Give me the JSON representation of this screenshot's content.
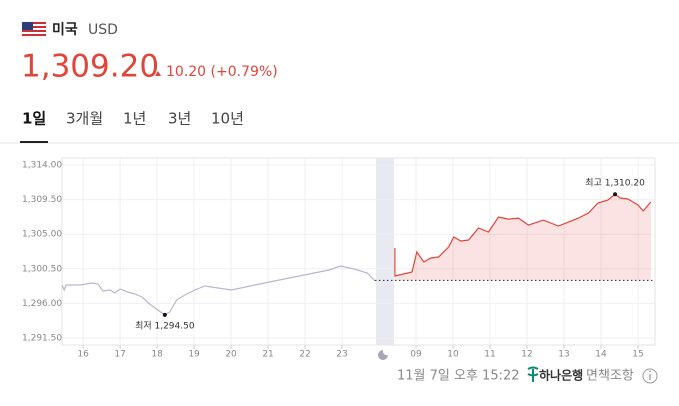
{
  "header": {
    "country": "미국",
    "currency": "USD",
    "price": "1,309.20",
    "change": "10.20 (+0.79%)"
  },
  "tabs": [
    "1일",
    "3개월",
    "1년",
    "3년",
    "10년"
  ],
  "footer": {
    "time": "11월 7일 오후 15:22",
    "bank": "하나은행",
    "separator": "·",
    "disclaimer": "면책조항"
  },
  "chart_data": {
    "type": "line",
    "xlim": [
      -0.57,
      15.46
    ],
    "ylim": [
      1291.5,
      1314
    ],
    "yticks": [
      {
        "value": 1314,
        "label": "1,314.00"
      },
      {
        "value": 1309.5,
        "label": "1,309.50"
      },
      {
        "value": 1305,
        "label": "1,305.00"
      },
      {
        "value": 1300.5,
        "label": "1,300.50"
      },
      {
        "value": 1296,
        "label": "1,296.00"
      },
      {
        "value": 1291.5,
        "label": "1,291.50"
      }
    ],
    "xticks": [
      {
        "value": 0,
        "label": "16"
      },
      {
        "value": 1,
        "label": "17"
      },
      {
        "value": 2,
        "label": "18"
      },
      {
        "value": 3,
        "label": "19"
      },
      {
        "value": 4,
        "label": "20"
      },
      {
        "value": 5,
        "label": "21"
      },
      {
        "value": 6,
        "label": "22"
      },
      {
        "value": 7,
        "label": "23"
      },
      {
        "value": 9,
        "label": "09"
      },
      {
        "value": 10,
        "label": "10"
      },
      {
        "value": 11,
        "label": "11"
      },
      {
        "value": 12,
        "label": "12"
      },
      {
        "value": 13,
        "label": "13"
      },
      {
        "value": 14,
        "label": "14"
      },
      {
        "value": 15,
        "label": "15"
      }
    ],
    "grid": true,
    "reference_line": 1299.0,
    "series": [
      {
        "color": "#b9b6cf",
        "x": [
          -0.57,
          -0.51,
          -0.46,
          -0.08,
          0.24,
          0.4,
          0.54,
          0.73,
          0.86,
          1.0,
          1.21,
          1.4,
          1.59,
          1.8,
          2.02,
          2.21,
          2.34,
          2.53,
          2.75,
          3.02,
          3.29,
          4.01,
          4.77,
          5.84,
          6.65,
          6.95,
          7.33,
          7.68,
          7.89
        ],
        "values": [
          1298.39,
          1297.74,
          1298.39,
          1298.39,
          1298.65,
          1298.52,
          1297.61,
          1297.74,
          1297.35,
          1297.87,
          1297.48,
          1297.22,
          1296.83,
          1295.92,
          1295.14,
          1294.5,
          1294.88,
          1296.44,
          1297.09,
          1297.74,
          1298.26,
          1297.74,
          1298.52,
          1299.56,
          1300.34,
          1300.86,
          1300.47,
          1299.95,
          1298.91
        ]
      },
      {
        "color": "#e0453a",
        "x": [
          8.43,
          8.43,
          8.89,
          9.02,
          9.21,
          9.4,
          9.61,
          9.88,
          10.02,
          10.21,
          10.42,
          10.69,
          10.96,
          11.23,
          11.5,
          11.77,
          12.04,
          12.44,
          12.85,
          13.12,
          13.39,
          13.66,
          13.92,
          14.19,
          14.38,
          14.52,
          14.73,
          15.0,
          15.14,
          15.35
        ],
        "values": [
          1303.2,
          1299.56,
          1300.08,
          1302.68,
          1301.38,
          1301.9,
          1302.03,
          1303.33,
          1304.63,
          1304.11,
          1304.24,
          1305.8,
          1305.28,
          1307.23,
          1306.97,
          1307.1,
          1306.19,
          1306.84,
          1306.06,
          1306.58,
          1307.1,
          1307.76,
          1309.06,
          1309.45,
          1310.2,
          1309.71,
          1309.58,
          1308.8,
          1308.02,
          1309.2
        ]
      }
    ],
    "annotations": [
      {
        "text": "최고 1,310.20",
        "x": 14.38,
        "y": 1310.2,
        "position": "above"
      },
      {
        "text": "최저 1,294.50",
        "x": 2.21,
        "y": 1294.5,
        "position": "below"
      }
    ]
  }
}
